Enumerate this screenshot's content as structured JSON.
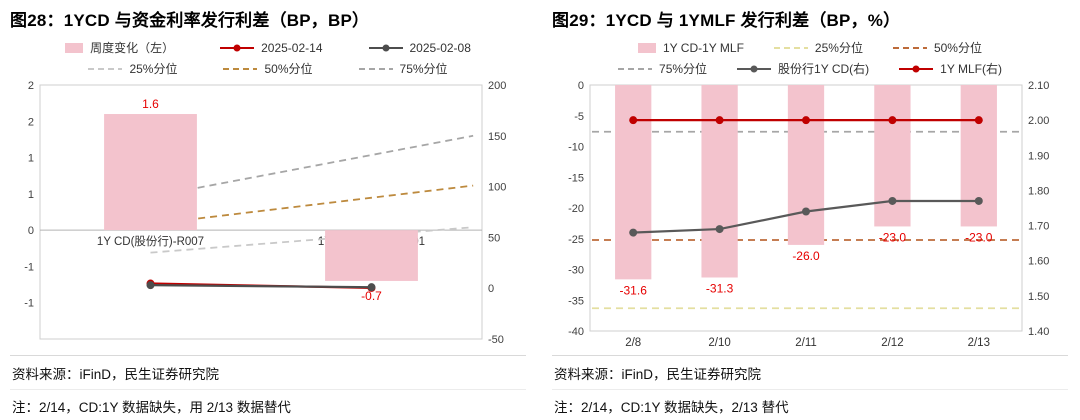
{
  "panels": [
    {
      "title": "图28：1YCD 与资金利率发行利差（BP，BP）",
      "source": "资料来源：iFinD，民生证券研究院",
      "note": "注：2/14，CD:1Y 数据缺失，用 2/13 数据替代"
    },
    {
      "title": "图29：1YCD 与 1YMLF 发行利差（BP，%）",
      "source": "资料来源：iFinD，民生证券研究院",
      "note": "注：2/14，CD:1Y 数据缺失，2/13 替代"
    }
  ],
  "chart_data": [
    {
      "type": "bar+line",
      "title": "图28：1YCD 与资金利率发行利差（BP，BP）",
      "categories": [
        "1Y CD(股份行)-R007",
        "1Y CD(股份行)-R001"
      ],
      "category_label_position": "zero",
      "axes": {
        "left": {
          "min": -1.5,
          "max": 2,
          "tick_values": [
            2,
            1.5,
            1,
            0.5,
            0,
            -0.5,
            -1
          ],
          "tick_labels": [
            "2",
            "2",
            "1",
            "1",
            "0",
            "-1",
            "-1"
          ]
        },
        "right": {
          "min": -50,
          "max": 200,
          "tick_values": [
            200,
            150,
            100,
            50,
            0,
            -50
          ],
          "tick_labels": [
            "200",
            "150",
            "100",
            "50",
            "0",
            "-50"
          ]
        }
      },
      "series": [
        {
          "kind": "bar",
          "name": "周度变化（左）",
          "axis": "left",
          "color": "#f3c3cd",
          "values": [
            1.6,
            -0.7
          ],
          "labels": [
            "1.6",
            "-0.7"
          ],
          "label_color": "#e60000"
        },
        {
          "kind": "segment",
          "name": "25%分位",
          "axis": "right",
          "color": "#c9c9c9",
          "dash": true,
          "x_frac": [
            0.25,
            0.98
          ],
          "values": [
            35,
            60
          ]
        },
        {
          "kind": "segment",
          "name": "50%分位",
          "axis": "right",
          "color": "#bd8a3e",
          "dash": true,
          "x_frac": [
            0.25,
            0.98
          ],
          "values": [
            63,
            101
          ]
        },
        {
          "kind": "segment",
          "name": "75%分位",
          "axis": "right",
          "color": "#a6a6a6",
          "dash": true,
          "x_frac": [
            0.25,
            0.98
          ],
          "values": [
            90,
            150
          ]
        },
        {
          "kind": "line",
          "name": "2025-02-14",
          "axis": "right",
          "color": "#c00000",
          "marker": true,
          "values": [
            4.6,
            0.3
          ]
        },
        {
          "kind": "line",
          "name": "2025-02-08",
          "axis": "right",
          "color": "#4d4d4d",
          "marker": true,
          "values": [
            3.0,
            1.0
          ]
        }
      ],
      "legend_rows": [
        [
          {
            "swatch": "bar",
            "color": "#f3c3cd",
            "label": "周度变化（左）"
          },
          {
            "swatch": "line-dot",
            "color": "#c00000",
            "label": "2025-02-14"
          },
          {
            "swatch": "line-dot",
            "color": "#4d4d4d",
            "label": "2025-02-08"
          }
        ],
        [
          {
            "swatch": "dash",
            "color": "#c9c9c9",
            "label": "25%分位"
          },
          {
            "swatch": "dash",
            "color": "#bd8a3e",
            "label": "50%分位"
          },
          {
            "swatch": "dash",
            "color": "#a6a6a6",
            "label": "75%分位"
          }
        ]
      ]
    },
    {
      "type": "bar+line",
      "title": "图29：1YCD 与 1YMLF 发行利差（BP，%）",
      "categories": [
        "2/8",
        "2/10",
        "2/11",
        "2/12",
        "2/13"
      ],
      "category_label_position": "bottom",
      "axes": {
        "left": {
          "min": -40,
          "max": 0,
          "tick_values": [
            0,
            -5,
            -10,
            -15,
            -20,
            -25,
            -30,
            -35,
            -40
          ],
          "tick_labels": [
            "0",
            "-5",
            "-10",
            "-15",
            "-20",
            "-25",
            "-30",
            "-35",
            "-40"
          ]
        },
        "right": {
          "min": 1.4,
          "max": 2.1,
          "tick_values": [
            2.1,
            2.0,
            1.9,
            1.8,
            1.7,
            1.6,
            1.5,
            1.4
          ],
          "tick_labels": [
            "2.10",
            "2.00",
            "1.90",
            "1.80",
            "1.70",
            "1.60",
            "1.50",
            "1.40"
          ]
        }
      },
      "series": [
        {
          "kind": "hline",
          "name": "25%分位",
          "axis": "left",
          "color": "#e4dfa0",
          "dash": true,
          "value": -36.3
        },
        {
          "kind": "hline",
          "name": "50%分位",
          "axis": "left",
          "color": "#bd6b3a",
          "dash": true,
          "value": -25.2
        },
        {
          "kind": "hline",
          "name": "75%分位",
          "axis": "left",
          "color": "#a6a6a6",
          "dash": true,
          "value": -7.6
        },
        {
          "kind": "bar",
          "name": "1Y CD-1Y MLF",
          "axis": "left",
          "color": "#f3c3cd",
          "values": [
            -31.6,
            -31.3,
            -26.0,
            -23.0,
            -23.0
          ],
          "labels": [
            "-31.6",
            "-31.3",
            "-26.0",
            "-23.0",
            "-23.0"
          ],
          "label_color": "#e60000"
        },
        {
          "kind": "line",
          "name": "股份行1Y CD(右)",
          "axis": "right",
          "color": "#595959",
          "marker": true,
          "values": [
            1.68,
            1.69,
            1.74,
            1.77,
            1.77
          ]
        },
        {
          "kind": "line",
          "name": "1Y MLF(右)",
          "axis": "right",
          "color": "#c00000",
          "marker": true,
          "values": [
            2.0,
            2.0,
            2.0,
            2.0,
            2.0
          ]
        }
      ],
      "legend_rows": [
        [
          {
            "swatch": "bar",
            "color": "#f3c3cd",
            "label": "1Y CD-1Y MLF"
          },
          {
            "swatch": "dash",
            "color": "#e4dfa0",
            "label": "25%分位"
          },
          {
            "swatch": "dash",
            "color": "#bd6b3a",
            "label": "50%分位"
          }
        ],
        [
          {
            "swatch": "dash",
            "color": "#a6a6a6",
            "label": "75%分位"
          },
          {
            "swatch": "line-dot",
            "color": "#595959",
            "label": "股份行1Y CD(右)"
          },
          {
            "swatch": "line-dot",
            "color": "#c00000",
            "label": "1Y MLF(右)"
          }
        ]
      ]
    }
  ]
}
